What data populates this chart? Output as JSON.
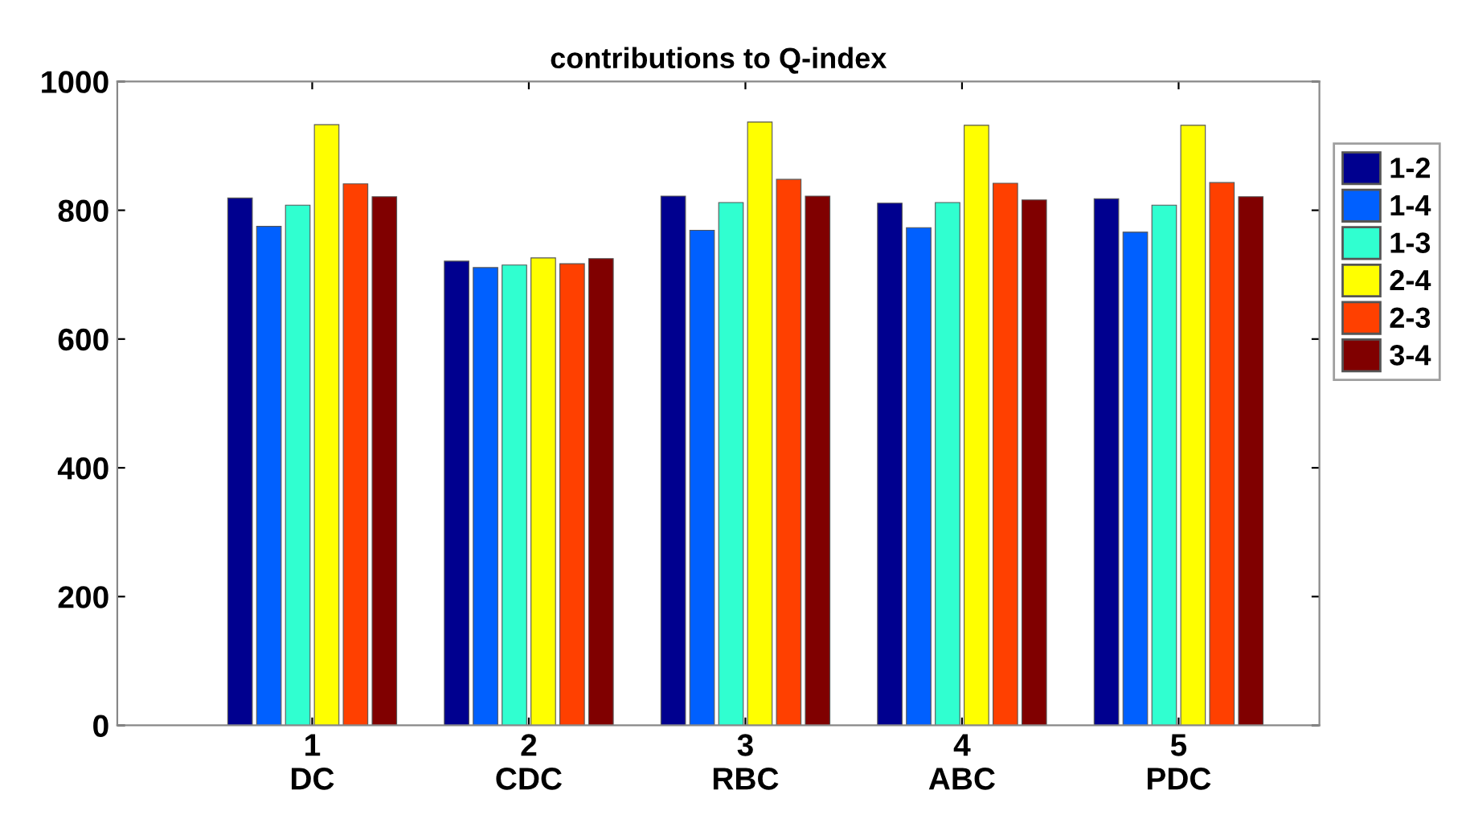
{
  "chart_data": {
    "type": "bar",
    "title": "contributions to Q-index",
    "categories": [
      "1\nDC",
      "2\nCDC",
      "3\nRBC",
      "4\nABC",
      "5\nPDC"
    ],
    "series": [
      {
        "name": "1-2",
        "color": "#00008f",
        "values": [
          819,
          721,
          822,
          811,
          818
        ]
      },
      {
        "name": "1-4",
        "color": "#0060ff",
        "values": [
          775,
          711,
          769,
          773,
          766
        ]
      },
      {
        "name": "1-3",
        "color": "#30ffd0",
        "values": [
          808,
          715,
          812,
          812,
          808
        ]
      },
      {
        "name": "2-4",
        "color": "#ffff00",
        "values": [
          933,
          726,
          937,
          932,
          932
        ]
      },
      {
        "name": "2-3",
        "color": "#ff4000",
        "values": [
          841,
          717,
          848,
          842,
          843
        ]
      },
      {
        "name": "3-4",
        "color": "#800000",
        "values": [
          821,
          725,
          822,
          816,
          821
        ]
      }
    ],
    "ylim": [
      0,
      1000
    ],
    "yticks": [
      0,
      200,
      400,
      600,
      800,
      1000
    ],
    "grid": false,
    "legend": "right"
  }
}
